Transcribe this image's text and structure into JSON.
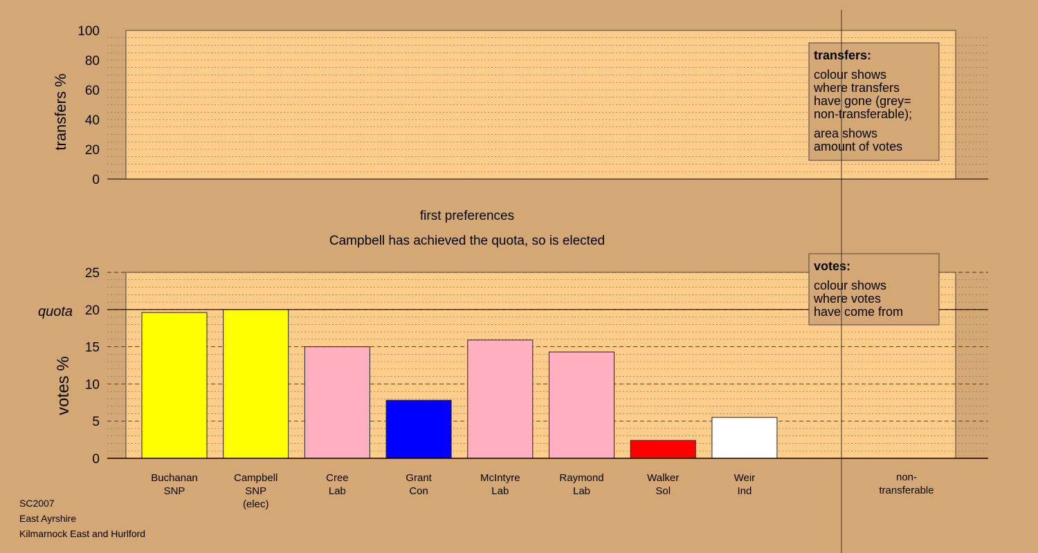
{
  "transfers_panel": {
    "ylabel": "transfers %",
    "ticks": [
      "0",
      "20",
      "40",
      "60",
      "80",
      "100"
    ],
    "legend": {
      "title": "transfers:",
      "lines": [
        "colour shows",
        "where transfers",
        "have gone (grey=",
        "non-transferable);",
        "area shows",
        "amount of votes"
      ]
    }
  },
  "stage": {
    "title": "first preferences",
    "message": "Campbell has achieved the quota, so is elected"
  },
  "votes_panel": {
    "ylabel": "votes %",
    "quota_label": "quota",
    "ticks": [
      "0",
      "5",
      "10",
      "15",
      "20",
      "25"
    ],
    "legend": {
      "title": "votes:",
      "lines": [
        "colour shows",
        "where votes",
        "have come from"
      ]
    }
  },
  "footer": {
    "line1": "SC2007",
    "line2": "East Ayrshire",
    "line3": "Kilmarnock East and Hurlford"
  },
  "chart_data": [
    {
      "type": "bar",
      "title": "first preferences",
      "ylabel": "votes %",
      "ylim": [
        0,
        25
      ],
      "quota": 20,
      "grid": true,
      "categories": [
        "Buchanan SNP",
        "Campbell SNP (elec)",
        "Cree Lab",
        "Grant Con",
        "McIntyre Lab",
        "Raymond Lab",
        "Walker Sol",
        "Weir Ind"
      ],
      "values": [
        19.6,
        20.0,
        15.0,
        7.8,
        15.9,
        14.3,
        2.4,
        5.5
      ],
      "colors": [
        "#ffff00",
        "#ffff00",
        "#ffb0c0",
        "#0000ff",
        "#ffb0c0",
        "#ffb0c0",
        "#ff0000",
        "#ffffff"
      ],
      "labels": [
        [
          "Buchanan",
          "SNP"
        ],
        [
          "Campbell",
          "SNP",
          "(elec)"
        ],
        [
          "Cree",
          "Lab"
        ],
        [
          "Grant",
          "Con"
        ],
        [
          "McIntyre",
          "Lab"
        ],
        [
          "Raymond",
          "Lab"
        ],
        [
          "Walker",
          "Sol"
        ],
        [
          "Weir",
          "Ind"
        ]
      ],
      "extra_category": [
        "non-",
        "transferable"
      ]
    },
    {
      "type": "bar",
      "ylabel": "transfers %",
      "ylim": [
        0,
        100
      ],
      "grid": true,
      "values": []
    }
  ]
}
